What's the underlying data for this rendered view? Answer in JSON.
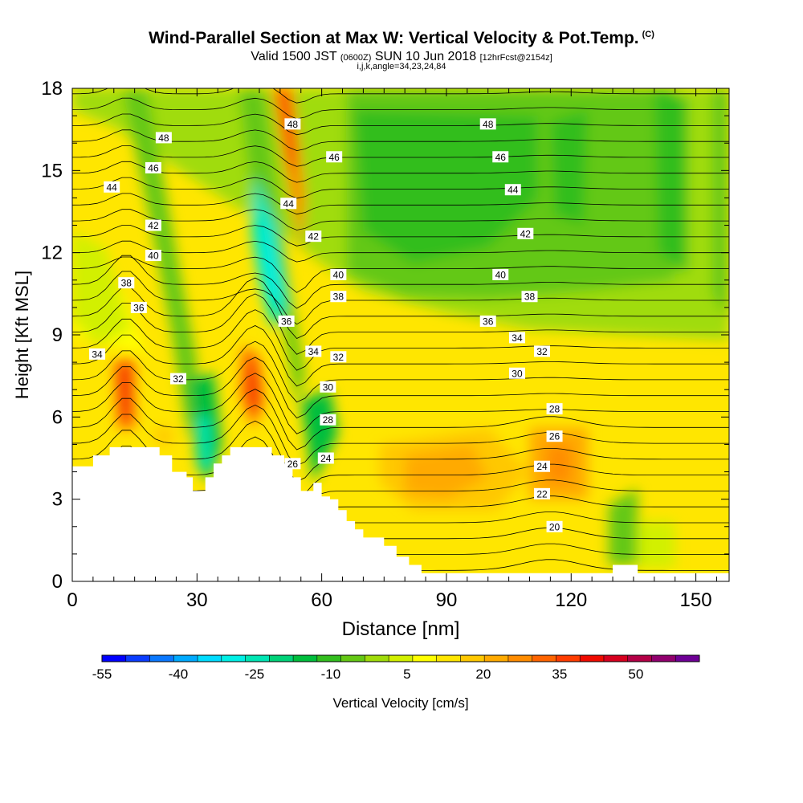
{
  "title": {
    "main": "Wind-Parallel Section at Max W: Vertical Velocity & Pot.Temp.",
    "main_suffix": "(C)",
    "valid_prefix": "Valid 1500 JST",
    "valid_zulu": "(0600Z)",
    "valid_date": "SUN 10 Jun 2018",
    "forecast": "[12hrFcst@2154z]",
    "indices": "i,j,k,angle=34,23,24,84"
  },
  "chart_data": {
    "type": "heatmap",
    "xlabel": "Distance [nm]",
    "ylabel": "Height [Kft MSL]",
    "xlim": [
      0,
      158
    ],
    "ylim": [
      0,
      18
    ],
    "x_ticks": [
      0,
      30,
      60,
      90,
      120,
      150
    ],
    "y_ticks": [
      0,
      3,
      6,
      9,
      12,
      15,
      18
    ],
    "colorbar": {
      "label": "Vertical Velocity [cm/s]",
      "tick_labels": [
        "-55",
        "-40",
        "-25",
        "-10",
        "5",
        "20",
        "35",
        "50"
      ],
      "tick_values": [
        -55,
        -40,
        -25,
        -10,
        5,
        20,
        35,
        50
      ],
      "range": [
        -55,
        62.5
      ],
      "bin_width": 5,
      "colors": [
        "#0000ff",
        "#0a3cff",
        "#0a78ff",
        "#00aaff",
        "#00dcff",
        "#00f0e6",
        "#00e6b4",
        "#00d278",
        "#00be3c",
        "#32be1e",
        "#64c814",
        "#a0dc0a",
        "#d2f000",
        "#ffff00",
        "#ffe600",
        "#ffc800",
        "#ffaa00",
        "#ff8c00",
        "#ff6400",
        "#ff3c00",
        "#f00a00",
        "#d7001e",
        "#b40046",
        "#91006e",
        "#6e0096"
      ]
    },
    "theta_labels": [
      {
        "x": 22,
        "y": 16.2,
        "text": "48"
      },
      {
        "x": 19.5,
        "y": 15.1,
        "text": "46"
      },
      {
        "x": 9.5,
        "y": 14.4,
        "text": "44"
      },
      {
        "x": 19.5,
        "y": 13.0,
        "text": "42"
      },
      {
        "x": 19.5,
        "y": 11.9,
        "text": "40"
      },
      {
        "x": 13,
        "y": 10.9,
        "text": "38"
      },
      {
        "x": 16,
        "y": 10.0,
        "text": "36"
      },
      {
        "x": 6,
        "y": 8.3,
        "text": "34"
      },
      {
        "x": 25.5,
        "y": 7.4,
        "text": "32"
      },
      {
        "x": 53,
        "y": 16.7,
        "text": "48"
      },
      {
        "x": 63,
        "y": 15.5,
        "text": "46"
      },
      {
        "x": 52,
        "y": 13.8,
        "text": "44"
      },
      {
        "x": 58,
        "y": 12.6,
        "text": "42"
      },
      {
        "x": 64,
        "y": 11.2,
        "text": "40"
      },
      {
        "x": 64,
        "y": 10.4,
        "text": "38"
      },
      {
        "x": 51.5,
        "y": 9.5,
        "text": "36"
      },
      {
        "x": 58,
        "y": 8.4,
        "text": "34"
      },
      {
        "x": 64,
        "y": 8.2,
        "text": "32"
      },
      {
        "x": 61.5,
        "y": 7.1,
        "text": "30"
      },
      {
        "x": 61.5,
        "y": 5.9,
        "text": "28"
      },
      {
        "x": 53,
        "y": 4.3,
        "text": "26"
      },
      {
        "x": 61,
        "y": 4.5,
        "text": "24"
      },
      {
        "x": 100,
        "y": 16.7,
        "text": "48"
      },
      {
        "x": 103,
        "y": 15.5,
        "text": "46"
      },
      {
        "x": 106,
        "y": 14.3,
        "text": "44"
      },
      {
        "x": 109,
        "y": 12.7,
        "text": "42"
      },
      {
        "x": 103,
        "y": 11.2,
        "text": "40"
      },
      {
        "x": 110,
        "y": 10.4,
        "text": "38"
      },
      {
        "x": 100,
        "y": 9.5,
        "text": "36"
      },
      {
        "x": 107,
        "y": 8.9,
        "text": "34"
      },
      {
        "x": 113,
        "y": 8.4,
        "text": "32"
      },
      {
        "x": 107,
        "y": 7.6,
        "text": "30"
      },
      {
        "x": 116,
        "y": 6.3,
        "text": "28"
      },
      {
        "x": 116,
        "y": 5.3,
        "text": "26"
      },
      {
        "x": 113,
        "y": 4.2,
        "text": "24"
      },
      {
        "x": 113,
        "y": 3.2,
        "text": "22"
      },
      {
        "x": 116,
        "y": 2.0,
        "text": "20"
      }
    ]
  }
}
